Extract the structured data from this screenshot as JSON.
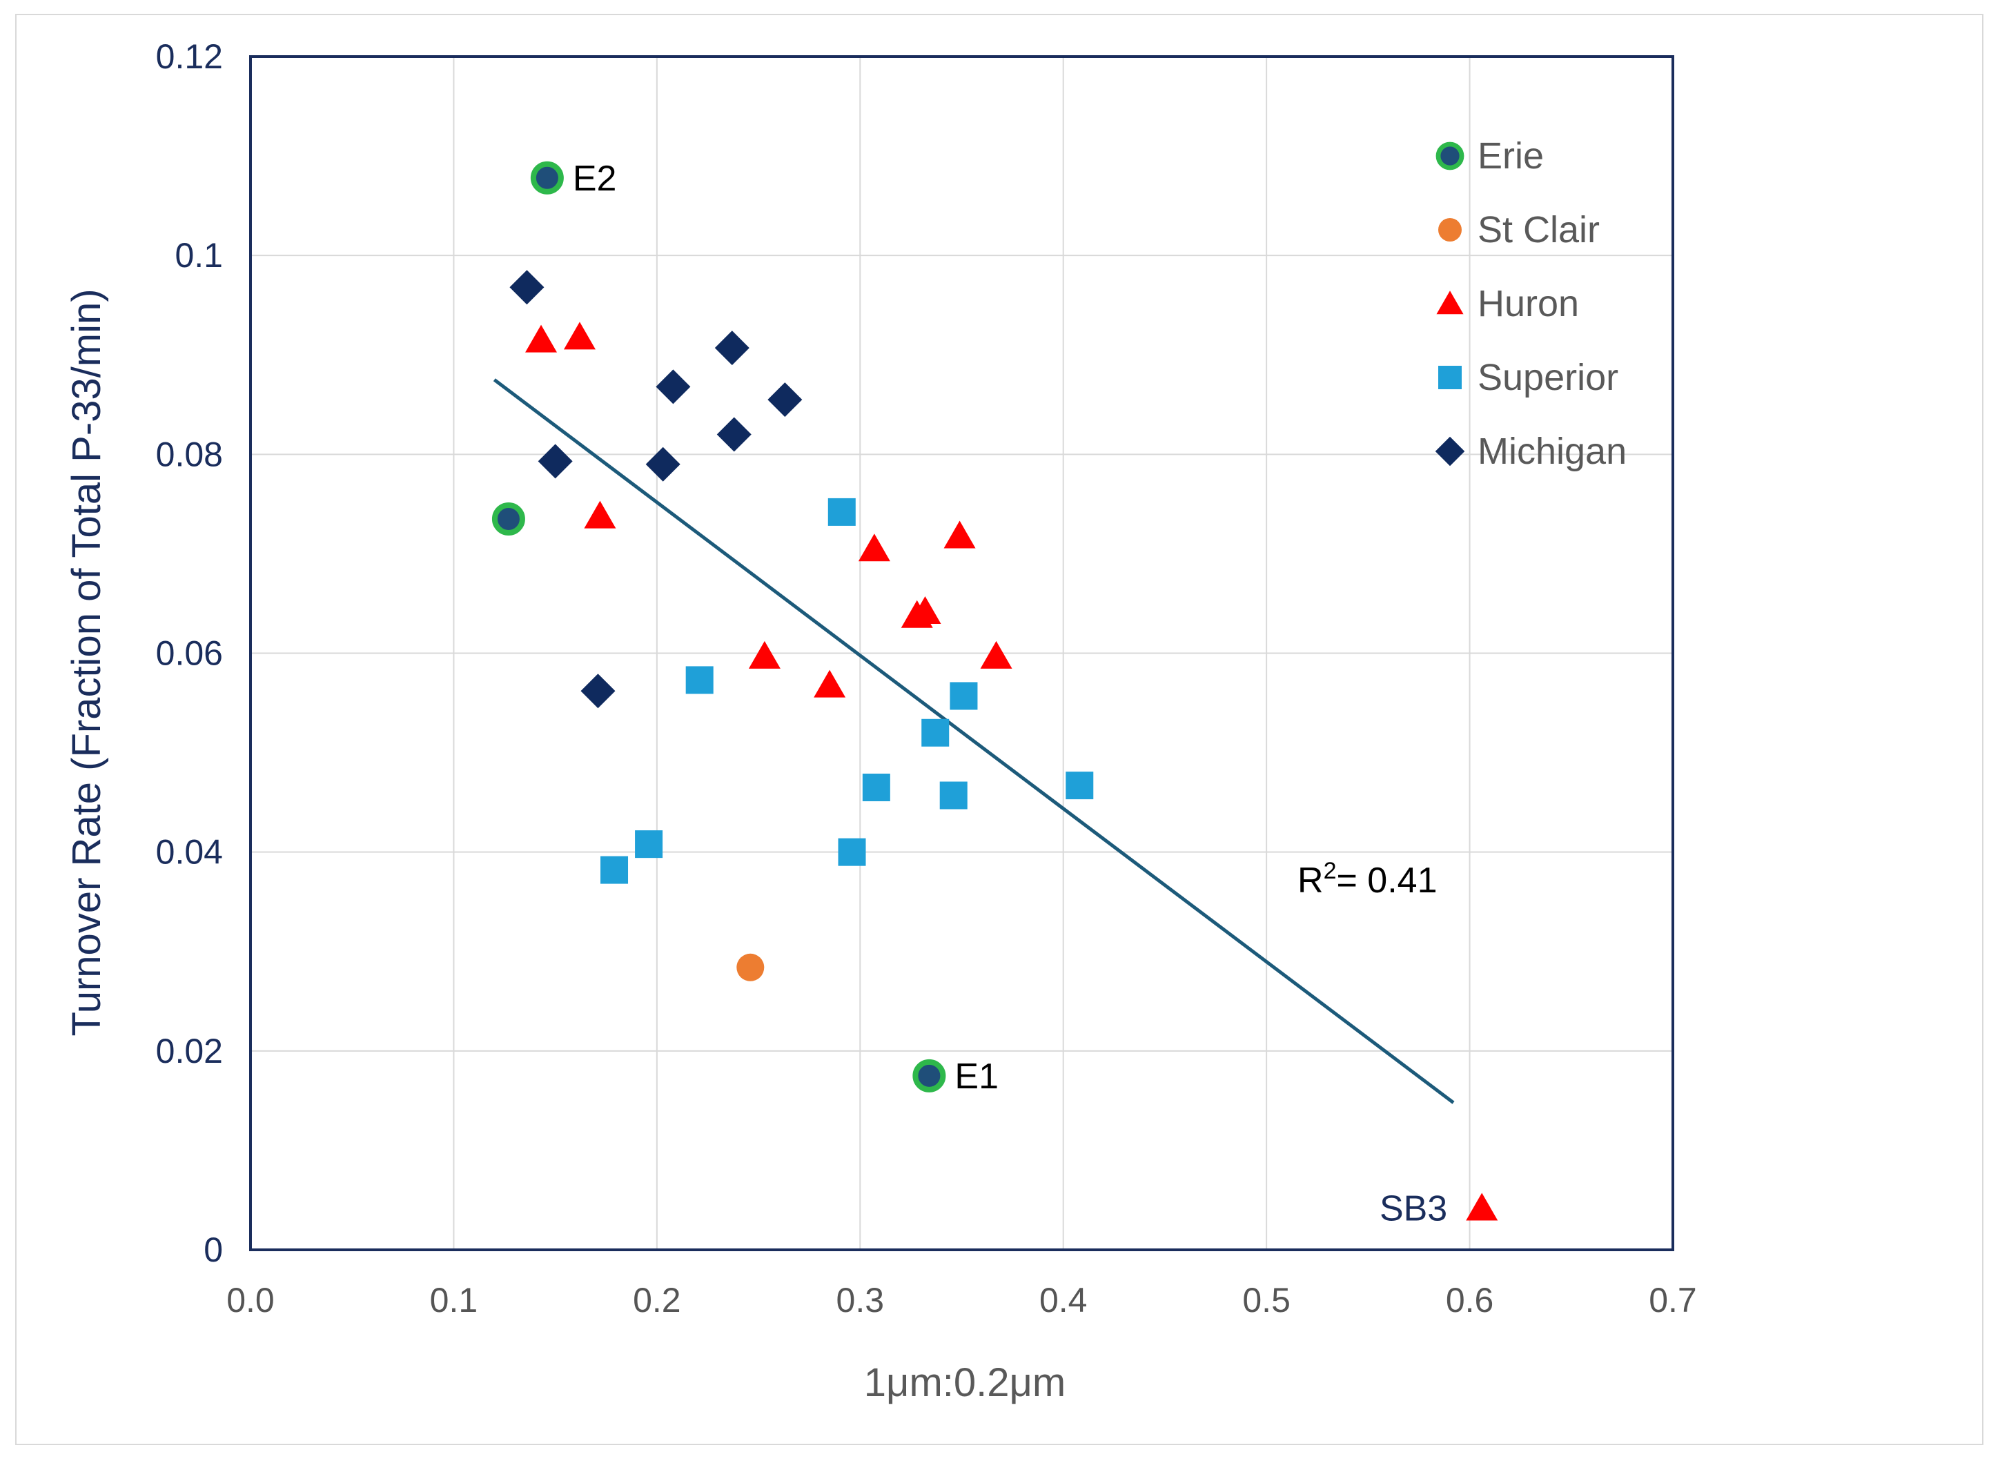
{
  "chart_data": {
    "type": "scatter",
    "title": "",
    "xlabel": "1μm:0.2μm",
    "ylabel": "Turnover Rate (Fraction of Total P-33/min)",
    "xlim": [
      0.0,
      0.7
    ],
    "ylim": [
      0,
      0.12
    ],
    "x_ticks": [
      "0.0",
      "0.1",
      "0.2",
      "0.3",
      "0.4",
      "0.5",
      "0.6",
      "0.7"
    ],
    "y_ticks": [
      "0",
      "0.02",
      "0.04",
      "0.06",
      "0.08",
      "0.1",
      "0.12"
    ],
    "x_tick_values": [
      0,
      0.1,
      0.2,
      0.3,
      0.4,
      0.5,
      0.6,
      0.7
    ],
    "y_tick_values": [
      0,
      0.02,
      0.04,
      0.06,
      0.08,
      0.1,
      0.12
    ],
    "grid": true,
    "legend_position": "top-right",
    "series": [
      {
        "name": "Erie",
        "marker": "circle",
        "color": "#1f4e79",
        "edge": "#2eb84b",
        "points": [
          [
            0.146,
            0.1078
          ],
          [
            0.127,
            0.0735
          ],
          [
            0.334,
            0.0175
          ]
        ]
      },
      {
        "name": "St Clair",
        "marker": "circle",
        "color": "#ed7d31",
        "edge": "",
        "points": [
          [
            0.246,
            0.0284
          ]
        ]
      },
      {
        "name": "Huron",
        "marker": "triangle",
        "color": "#ff0000",
        "edge": "",
        "points": [
          [
            0.143,
            0.0915
          ],
          [
            0.162,
            0.0918
          ],
          [
            0.172,
            0.0738
          ],
          [
            0.253,
            0.0597
          ],
          [
            0.285,
            0.0568
          ],
          [
            0.307,
            0.0705
          ],
          [
            0.328,
            0.0638
          ],
          [
            0.332,
            0.0642
          ],
          [
            0.349,
            0.0718
          ],
          [
            0.367,
            0.0597
          ],
          [
            0.606,
            0.0042
          ]
        ]
      },
      {
        "name": "Superior",
        "marker": "square",
        "color": "#1fa0d8",
        "edge": "",
        "points": [
          [
            0.179,
            0.0382
          ],
          [
            0.196,
            0.0408
          ],
          [
            0.221,
            0.0573
          ],
          [
            0.291,
            0.0742
          ],
          [
            0.296,
            0.04
          ],
          [
            0.308,
            0.0465
          ],
          [
            0.337,
            0.052
          ],
          [
            0.346,
            0.0457
          ],
          [
            0.351,
            0.0557
          ],
          [
            0.408,
            0.0467
          ]
        ]
      },
      {
        "name": "Michigan",
        "marker": "diamond",
        "color": "#0f2a5e",
        "edge": "",
        "points": [
          [
            0.136,
            0.0968
          ],
          [
            0.15,
            0.0793
          ],
          [
            0.171,
            0.0562
          ],
          [
            0.203,
            0.079
          ],
          [
            0.208,
            0.0868
          ],
          [
            0.237,
            0.0907
          ],
          [
            0.238,
            0.082
          ],
          [
            0.263,
            0.0855
          ]
        ]
      }
    ],
    "trendline": {
      "x": [
        0.12,
        0.592
      ],
      "y": [
        0.0875,
        0.0148
      ],
      "color": "#1c5a7a"
    },
    "annotations": [
      {
        "text": "E2",
        "x": 0.146,
        "y": 0.1078,
        "color": "#000000",
        "anchor": "right"
      },
      {
        "text": "E1",
        "x": 0.334,
        "y": 0.0175,
        "color": "#000000",
        "anchor": "right"
      },
      {
        "text": "SB3",
        "x": 0.606,
        "y": 0.0042,
        "color": "#1a2d5c",
        "anchor": "left"
      }
    ],
    "r_squared_label": "R²= 0.41",
    "r_squared_base": "R",
    "r_squared_sup": "2",
    "r_squared_value": "= 0.41",
    "colors": {
      "axis": "#1a2d5c",
      "grid": "#d9d9d9",
      "ylabel": "#1a2d5c",
      "xlabel": "#595959"
    }
  }
}
